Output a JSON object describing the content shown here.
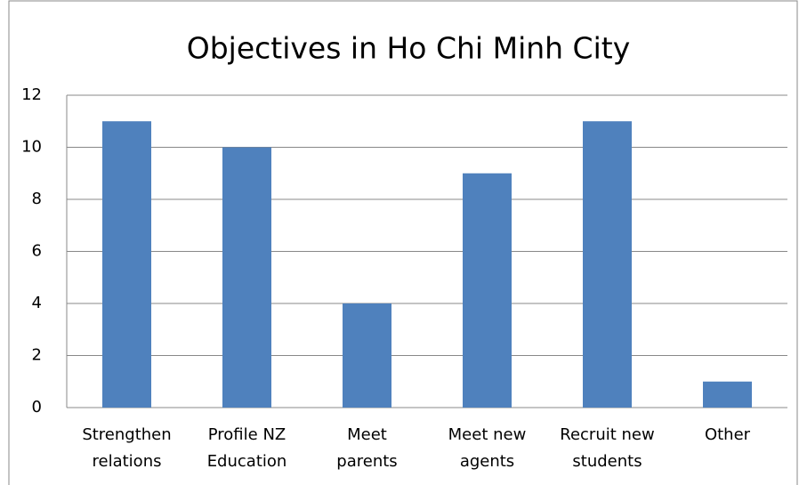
{
  "chart_data": {
    "type": "bar",
    "title": "Objectives in Ho Chi Minh City",
    "categories": [
      "Strengthen\nrelations",
      "Profile NZ\nEducation",
      "Meet\nparents",
      "Meet new\nagents",
      "Recruit new\nstudents",
      "Other"
    ],
    "values": [
      11,
      10,
      4,
      9,
      11,
      1
    ],
    "color": "#4f81bd",
    "ylim": [
      0,
      12
    ],
    "yticks": [
      0,
      2,
      4,
      6,
      8,
      10,
      12
    ],
    "grid": true
  }
}
